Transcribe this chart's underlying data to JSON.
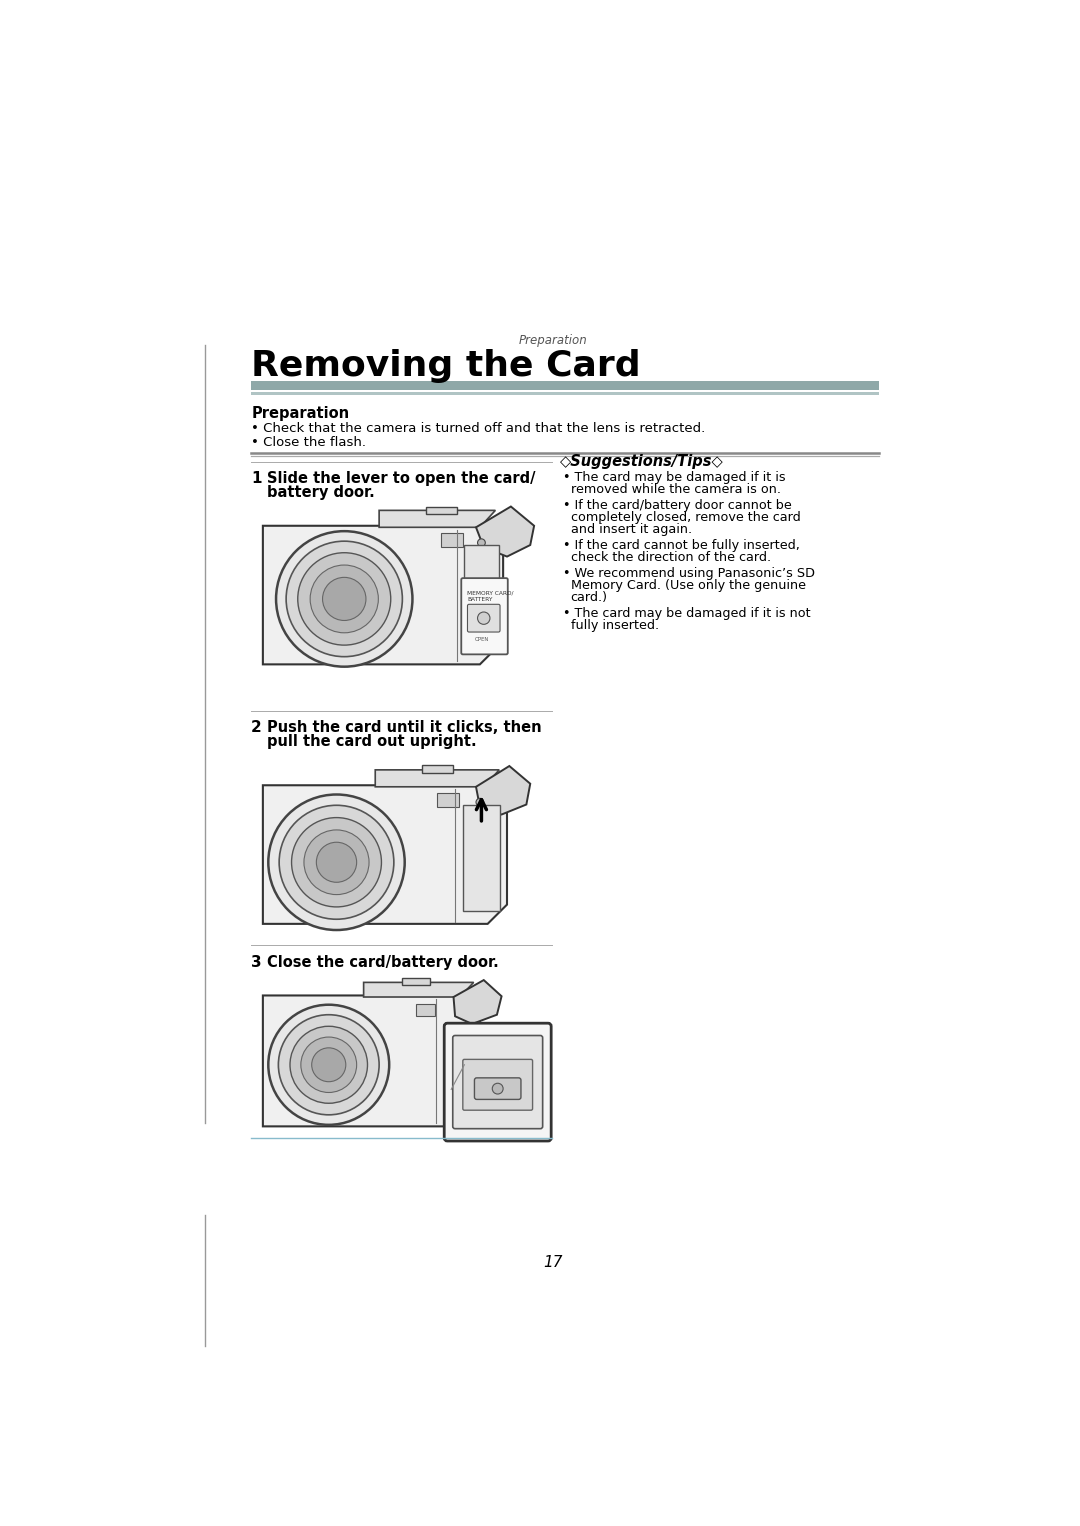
{
  "bg_color": "#ffffff",
  "page_width": 10.8,
  "page_height": 15.26,
  "dpi": 100,
  "header_italic": "Preparation",
  "title": "Removing the Card",
  "title_fontsize": 26,
  "title_color": "#000000",
  "header_bar_color": "#8fa8a8",
  "header_bar2_color": "#b0c4c4",
  "prep_bold": "Preparation",
  "prep_bullets": [
    "Check that the camera is turned off and that the lens is retracted.",
    "Close the flash."
  ],
  "step1_line1": "Slide the lever to open the card/",
  "step1_line2": "battery door.",
  "step2_line1": "Push the card until it clicks, then",
  "step2_line2": "pull the card out upright.",
  "step3_text": "Close the card/battery door.",
  "tips_title": "◇Suggestions/Tips◇",
  "tips_bullets": [
    [
      "The card may be damaged if it is",
      "removed while the camera is on."
    ],
    [
      "If the card/battery door cannot be",
      "completely closed, remove the card",
      "and insert it again."
    ],
    [
      "If the card cannot be fully inserted,",
      "check the direction of the card."
    ],
    [
      "We recommend using Panasonic’s SD",
      "Memory Card. (Use only the genuine",
      "card.)"
    ],
    [
      "The card may be damaged if it is not",
      "fully inserted."
    ]
  ],
  "thin_divider_color": "#aaaaaa",
  "double_divider_top": "#7a9a9a",
  "double_divider_bot": "#b0c4c4",
  "page_num": "17",
  "left_line_color": "#999999"
}
